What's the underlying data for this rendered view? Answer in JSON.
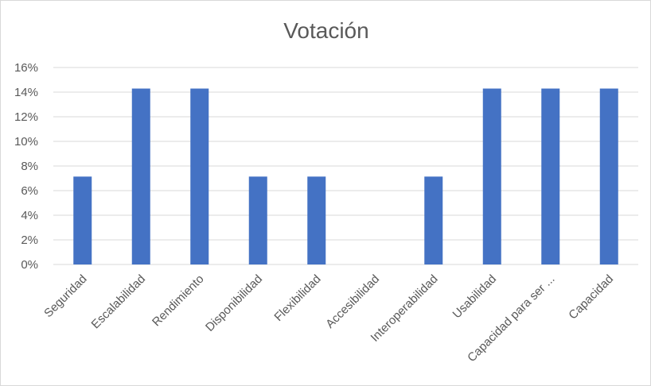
{
  "chart_data": {
    "type": "bar",
    "title": "Votación",
    "xlabel": "",
    "ylabel": "",
    "ylim": [
      0,
      16
    ],
    "yticks": [
      "0%",
      "2%",
      "4%",
      "6%",
      "8%",
      "10%",
      "12%",
      "14%",
      "16%"
    ],
    "categories": [
      "Seguridad",
      "Escalabilidad",
      "Rendimiento",
      "Disponibilidad",
      "Flexibilidad",
      "Accesibilidad",
      "Interoperabilidad",
      "Usabilidad",
      "Capacidad para ser ...",
      "Capacidad"
    ],
    "values": [
      7.14,
      14.29,
      14.29,
      7.14,
      7.14,
      0,
      7.14,
      14.29,
      14.29,
      14.29
    ],
    "unit": "%",
    "bar_color": "#4472c4",
    "grid": true,
    "legend": "none"
  }
}
